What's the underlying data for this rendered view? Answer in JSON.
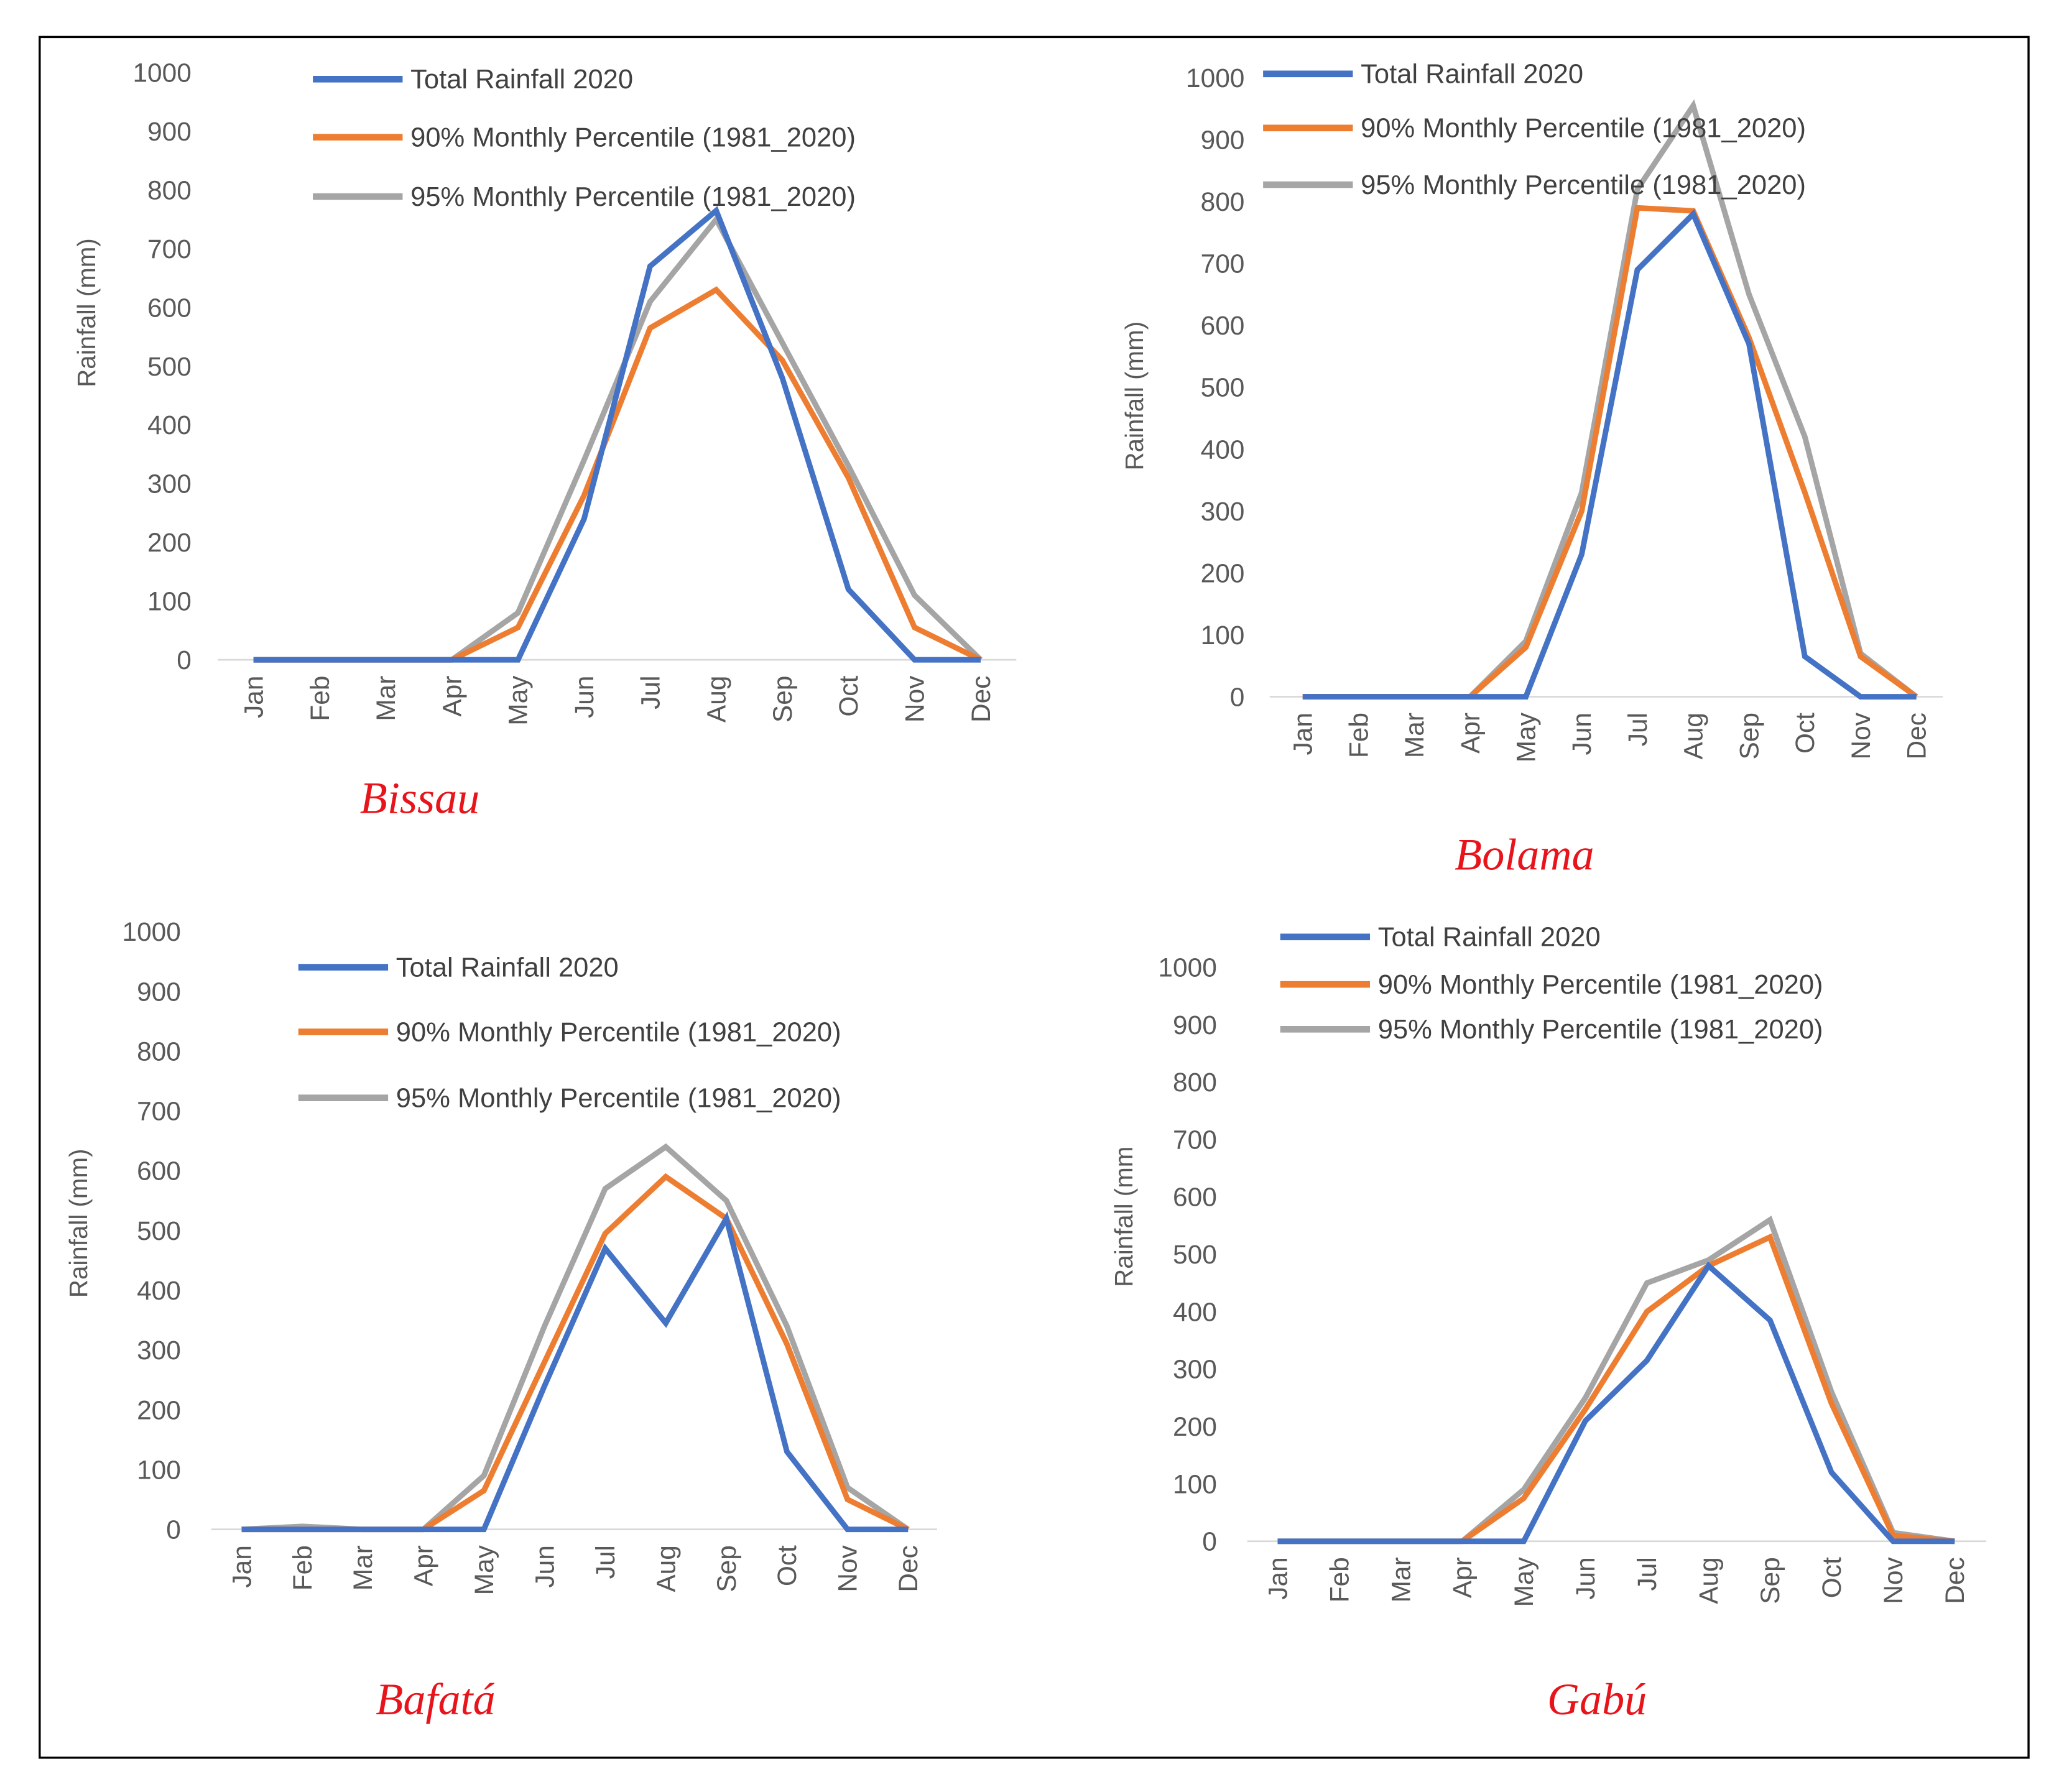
{
  "colors": {
    "total": "#4472c4",
    "p90": "#ed7d31",
    "p95": "#a5a5a5",
    "title": "#e8141b",
    "frame": "#000000"
  },
  "chart_data": [
    {
      "type": "line",
      "title": "Bissau",
      "ylabel": "Rainfall (mm)",
      "xlabel": "",
      "categories": [
        "Jan",
        "Feb",
        "Mar",
        "Apr",
        "May",
        "Jun",
        "Jul",
        "Aug",
        "Sep",
        "Oct",
        "Nov",
        "Dec"
      ],
      "yticks": [
        0,
        100,
        200,
        300,
        400,
        500,
        600,
        700,
        800,
        900,
        1000
      ],
      "ylim": [
        0,
        1000
      ],
      "legend_position": "top",
      "series": [
        {
          "name": "Total Rainfall 2020",
          "key": "total",
          "values": [
            0,
            0,
            0,
            0,
            0,
            240,
            670,
            765,
            480,
            120,
            0,
            0
          ]
        },
        {
          "name": "90% Monthly Percentile (1981_2020)",
          "key": "p90",
          "values": [
            0,
            0,
            0,
            0,
            55,
            280,
            565,
            630,
            510,
            310,
            55,
            0
          ]
        },
        {
          "name": "95% Monthly Percentile (1981_2020)",
          "key": "p95",
          "values": [
            0,
            0,
            0,
            0,
            80,
            340,
            610,
            750,
            540,
            330,
            110,
            0
          ]
        }
      ]
    },
    {
      "type": "line",
      "title": "Bolama",
      "ylabel": "Rainfall (mm)",
      "xlabel": "",
      "categories": [
        "Jan",
        "Feb",
        "Mar",
        "Apr",
        "May",
        "Jun",
        "Jul",
        "Aug",
        "Sep",
        "Oct",
        "Nov",
        "Dec"
      ],
      "yticks": [
        0,
        100,
        200,
        300,
        400,
        500,
        600,
        700,
        800,
        900,
        1000
      ],
      "ylim": [
        0,
        1000
      ],
      "legend_position": "top",
      "series": [
        {
          "name": "Total Rainfall 2020",
          "key": "total",
          "values": [
            0,
            0,
            0,
            0,
            0,
            230,
            690,
            780,
            570,
            65,
            0,
            0
          ]
        },
        {
          "name": "90% Monthly Percentile (1981_2020)",
          "key": "p90",
          "values": [
            0,
            0,
            0,
            0,
            80,
            300,
            790,
            785,
            580,
            330,
            65,
            0
          ]
        },
        {
          "name": "95% Monthly Percentile (1981_2020)",
          "key": "p95",
          "values": [
            0,
            0,
            0,
            0,
            90,
            330,
            820,
            955,
            650,
            420,
            70,
            0
          ]
        }
      ]
    },
    {
      "type": "line",
      "title": "Bafatá",
      "ylabel": "Rainfall (mm)",
      "xlabel": "",
      "categories": [
        "Jan",
        "Feb",
        "Mar",
        "Apr",
        "May",
        "Jun",
        "Jul",
        "Aug",
        "Sep",
        "Oct",
        "Nov",
        "Dec"
      ],
      "yticks": [
        0,
        100,
        200,
        300,
        400,
        500,
        600,
        700,
        800,
        900,
        1000
      ],
      "ylim": [
        0,
        1000
      ],
      "legend_position": "top",
      "series": [
        {
          "name": "Total Rainfall 2020",
          "key": "total",
          "values": [
            0,
            0,
            0,
            0,
            0,
            240,
            470,
            345,
            520,
            130,
            0,
            0
          ]
        },
        {
          "name": "90% Monthly Percentile (1981_2020)",
          "key": "p90",
          "values": [
            0,
            0,
            0,
            0,
            65,
            280,
            495,
            590,
            520,
            310,
            50,
            0
          ]
        },
        {
          "name": "95% Monthly Percentile (1981_2020)",
          "key": "p95",
          "values": [
            0,
            5,
            0,
            0,
            90,
            340,
            570,
            640,
            550,
            340,
            70,
            0
          ]
        }
      ]
    },
    {
      "type": "line",
      "title": "Gabú",
      "ylabel": "Rainfall (mm",
      "xlabel": "",
      "categories": [
        "Jan",
        "Feb",
        "Mar",
        "Apr",
        "May",
        "Jun",
        "Jul",
        "Aug",
        "Sep",
        "Oct",
        "Nov",
        "Dec"
      ],
      "yticks": [
        0,
        100,
        200,
        300,
        400,
        500,
        600,
        700,
        800,
        900,
        1000
      ],
      "ylim": [
        0,
        1000
      ],
      "legend_position": "top",
      "series": [
        {
          "name": "Total Rainfall 2020",
          "key": "total",
          "values": [
            0,
            0,
            0,
            0,
            0,
            210,
            315,
            480,
            385,
            120,
            0,
            0
          ]
        },
        {
          "name": "90% Monthly Percentile (1981_2020)",
          "key": "p90",
          "values": [
            0,
            0,
            0,
            0,
            75,
            230,
            400,
            480,
            530,
            240,
            10,
            0
          ]
        },
        {
          "name": "95% Monthly Percentile (1981_2020)",
          "key": "p95",
          "values": [
            0,
            0,
            0,
            0,
            90,
            250,
            450,
            490,
            560,
            260,
            15,
            0
          ]
        }
      ]
    }
  ]
}
